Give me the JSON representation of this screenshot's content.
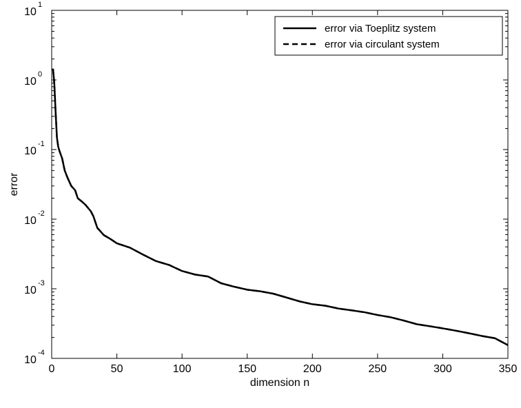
{
  "chart_data": {
    "type": "line",
    "xlabel": "dimension n",
    "ylabel": "error",
    "xlim": [
      0,
      350
    ],
    "ylim": [
      0.0001,
      10
    ],
    "yscale": "log",
    "xticks": [
      0,
      50,
      100,
      150,
      200,
      250,
      300,
      350
    ],
    "yticks": [
      {
        "value": 0.0001,
        "base": "10",
        "exp": "-4"
      },
      {
        "value": 0.001,
        "base": "10",
        "exp": "-3"
      },
      {
        "value": 0.01,
        "base": "10",
        "exp": "-2"
      },
      {
        "value": 0.1,
        "base": "10",
        "exp": "-1"
      },
      {
        "value": 1,
        "base": "10",
        "exp": "0"
      },
      {
        "value": 10,
        "base": "10",
        "exp": "1"
      }
    ],
    "grid": false,
    "legend_position": "top-right",
    "series": [
      {
        "name": "error via Toeplitz system",
        "style": "solid",
        "color": "#000000",
        "x": [
          1,
          2,
          3,
          4,
          5,
          6,
          8,
          10,
          12,
          15,
          18,
          20,
          23,
          26,
          30,
          32,
          35,
          40,
          45,
          50,
          60,
          70,
          80,
          90,
          100,
          110,
          120,
          130,
          140,
          150,
          160,
          170,
          180,
          190,
          200,
          210,
          220,
          230,
          240,
          250,
          260,
          270,
          280,
          290,
          300,
          310,
          320,
          330,
          340,
          350
        ],
        "y": [
          1.45,
          0.9,
          0.35,
          0.15,
          0.11,
          0.095,
          0.075,
          0.05,
          0.04,
          0.03,
          0.026,
          0.02,
          0.018,
          0.016,
          0.013,
          0.011,
          0.0075,
          0.0059,
          0.0052,
          0.0045,
          0.0039,
          0.0031,
          0.0025,
          0.0022,
          0.0018,
          0.0016,
          0.0015,
          0.0012,
          0.00107,
          0.00097,
          0.00092,
          0.00085,
          0.00075,
          0.00066,
          0.0006,
          0.00057,
          0.00052,
          0.00049,
          0.00046,
          0.00042,
          0.00039,
          0.00035,
          0.00031,
          0.00029,
          0.00027,
          0.00025,
          0.00023,
          0.00021,
          0.000195,
          0.000155
        ]
      },
      {
        "name": "error via circulant system",
        "style": "dashed",
        "color": "#000000",
        "x": [
          1,
          2,
          3,
          4,
          5,
          6,
          8,
          10,
          12,
          15,
          18,
          20,
          23,
          26,
          30,
          32,
          35,
          40,
          45,
          50,
          60,
          70,
          80,
          90,
          100,
          110,
          120,
          130,
          140,
          150,
          160,
          170,
          180,
          190,
          200,
          210,
          220,
          230,
          240,
          250,
          260,
          270,
          280,
          290,
          300,
          310,
          320,
          330,
          340,
          350
        ],
        "y": [
          1.45,
          0.9,
          0.35,
          0.15,
          0.11,
          0.095,
          0.075,
          0.05,
          0.04,
          0.03,
          0.026,
          0.02,
          0.018,
          0.016,
          0.013,
          0.011,
          0.0075,
          0.0059,
          0.0052,
          0.0045,
          0.0039,
          0.0031,
          0.0025,
          0.0022,
          0.0018,
          0.0016,
          0.0015,
          0.0012,
          0.00107,
          0.00097,
          0.00092,
          0.00085,
          0.00075,
          0.00066,
          0.0006,
          0.00057,
          0.00052,
          0.00049,
          0.00046,
          0.00042,
          0.00039,
          0.00035,
          0.00031,
          0.00029,
          0.00027,
          0.00025,
          0.00023,
          0.00021,
          0.000195,
          0.000155
        ]
      }
    ]
  }
}
